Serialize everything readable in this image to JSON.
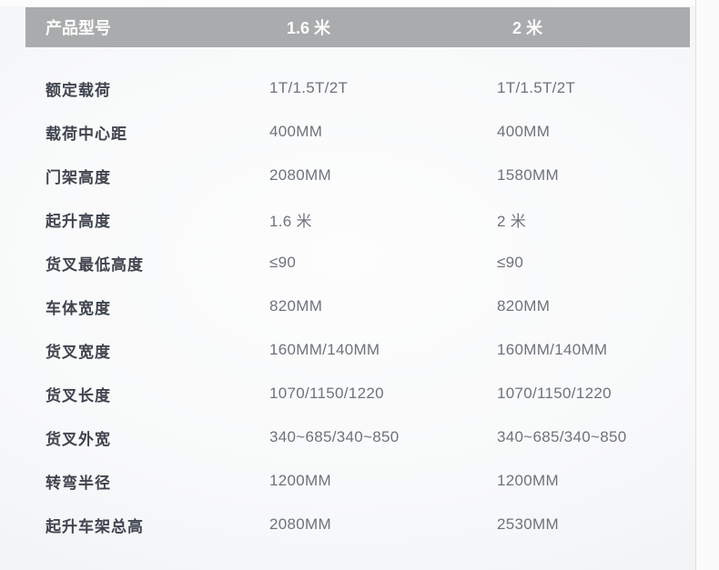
{
  "colors": {
    "header_bg": "#a9abac",
    "header_text": "#ffffff",
    "label_text": "#3f444e",
    "value_text": "#6e737b",
    "page_vignette_edge": "#e9ebed",
    "page_vignette_center": "#fdfdfd"
  },
  "table": {
    "header": {
      "model_col": "产品型号",
      "col_1": "1.6 米",
      "col_2": "2 米"
    },
    "rows": [
      {
        "label": "额定载荷",
        "v1": "1T/1.5T/2T",
        "v2": "1T/1.5T/2T"
      },
      {
        "label": "载荷中心距",
        "v1": "400MM",
        "v2": "400MM"
      },
      {
        "label": "门架高度",
        "v1": "2080MM",
        "v2": "1580MM"
      },
      {
        "label": "起升高度",
        "v1": "1.6 米",
        "v2": "2 米"
      },
      {
        "label": "货叉最低高度",
        "v1": "≤90",
        "v2": "≤90"
      },
      {
        "label": "车体宽度",
        "v1": "820MM",
        "v2": "820MM"
      },
      {
        "label": "货叉宽度",
        "v1": "160MM/140MM",
        "v2": "160MM/140MM"
      },
      {
        "label": "货叉长度",
        "v1": "1070/1150/1220",
        "v2": "1070/1150/1220"
      },
      {
        "label": "货叉外宽",
        "v1": "340~685/340~850",
        "v2": "340~685/340~850"
      },
      {
        "label": "转弯半径",
        "v1": "1200MM",
        "v2": "1200MM"
      },
      {
        "label": "起升车架总高",
        "v1": "2080MM",
        "v2": "2530MM"
      }
    ]
  }
}
